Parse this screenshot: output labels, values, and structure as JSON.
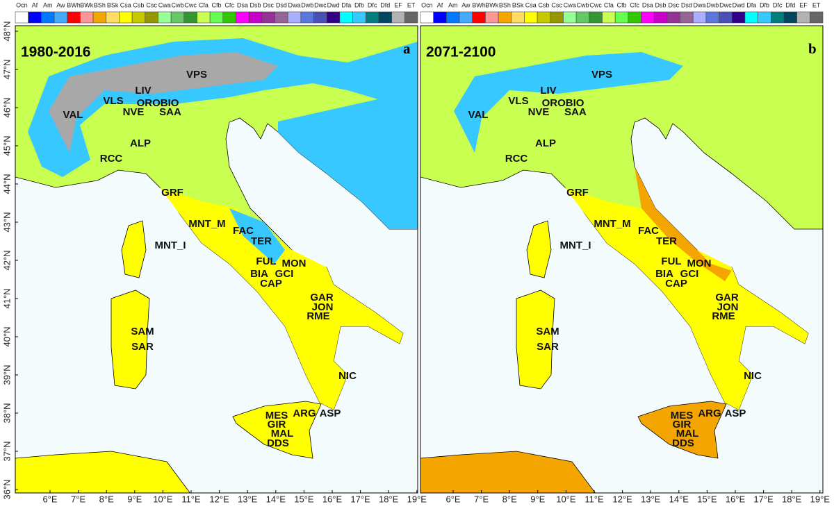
{
  "legend": [
    {
      "name": "Ocn",
      "color": "#ffffff"
    },
    {
      "name": "Af",
      "color": "#0000ff"
    },
    {
      "name": "Am",
      "color": "#0078ff"
    },
    {
      "name": "Aw",
      "color": "#46aafa"
    },
    {
      "name": "BWh",
      "color": "#ff0000"
    },
    {
      "name": "BWk",
      "color": "#ff9696"
    },
    {
      "name": "BSh",
      "color": "#f5a500"
    },
    {
      "name": "BSk",
      "color": "#ffdc64"
    },
    {
      "name": "Csa",
      "color": "#ffff00"
    },
    {
      "name": "Csb",
      "color": "#c8c800"
    },
    {
      "name": "Csc",
      "color": "#969600"
    },
    {
      "name": "Cwa",
      "color": "#96ff96"
    },
    {
      "name": "Cwb",
      "color": "#64c864"
    },
    {
      "name": "Cwc",
      "color": "#329632"
    },
    {
      "name": "Cfa",
      "color": "#c8ff50"
    },
    {
      "name": "Cfb",
      "color": "#64ff50"
    },
    {
      "name": "Cfc",
      "color": "#32c800"
    },
    {
      "name": "Dsa",
      "color": "#ff00ff"
    },
    {
      "name": "Dsb",
      "color": "#c800c8"
    },
    {
      "name": "Dsc",
      "color": "#963296"
    },
    {
      "name": "Dsd",
      "color": "#966496"
    },
    {
      "name": "Dwa",
      "color": "#aaafff"
    },
    {
      "name": "Dwb",
      "color": "#5a78dc"
    },
    {
      "name": "Dwc",
      "color": "#4b50b4"
    },
    {
      "name": "Dwd",
      "color": "#320087"
    },
    {
      "name": "Dfa",
      "color": "#00ffff"
    },
    {
      "name": "Dfb",
      "color": "#37c8ff"
    },
    {
      "name": "Dfc",
      "color": "#007d7d"
    },
    {
      "name": "Dfd",
      "color": "#00465f"
    },
    {
      "name": "EF",
      "color": "#b2b2b2"
    },
    {
      "name": "ET",
      "color": "#666666"
    }
  ],
  "panels": [
    {
      "period": "1980-2016",
      "letter": "a"
    },
    {
      "period": "2071-2100",
      "letter": "b"
    }
  ],
  "stations": [
    "VPS",
    "LIV",
    "VLS",
    "OROBIO",
    "VAL",
    "NVE",
    "SAA",
    "ALP",
    "RCC",
    "GRF",
    "MNT_M",
    "FAC",
    "MNT_I",
    "TER",
    "FUL",
    "MON",
    "BIA",
    "GCI",
    "CAP",
    "GAR",
    "JON",
    "RME",
    "SAM",
    "SAR",
    "NIC",
    "MES",
    "ARG",
    "ASP",
    "GIR",
    "MAL",
    "DDS"
  ],
  "lat_ticks": [
    "36°N",
    "37°N",
    "38°N",
    "39°N",
    "40°N",
    "41°N",
    "42°N",
    "43°N",
    "44°N",
    "45°N",
    "46°N",
    "47°N",
    "48°N"
  ],
  "lon_ticks": [
    "6°E",
    "7°E",
    "8°E",
    "9°E",
    "10°E",
    "11°E",
    "12°E",
    "13°E",
    "14°E",
    "15°E",
    "16°E",
    "17°E",
    "18°E",
    "19°E"
  ]
}
